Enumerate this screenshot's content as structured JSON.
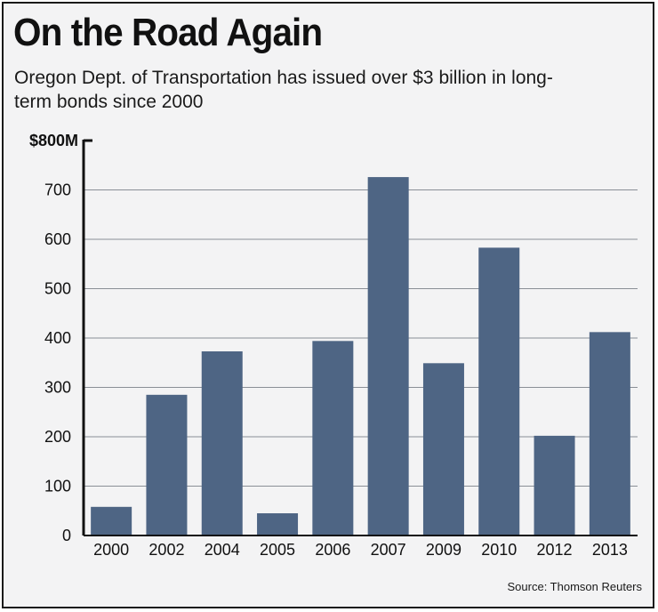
{
  "chart_data": {
    "type": "bar",
    "title": "On the Road Again",
    "subtitle": "Oregon Dept. of Transportation has issued over $3 billion in long-term bonds since 2000",
    "categories": [
      "2000",
      "2002",
      "2004",
      "2005",
      "2006",
      "2007",
      "2009",
      "2010",
      "2012",
      "2013"
    ],
    "values": [
      58,
      285,
      373,
      45,
      394,
      726,
      349,
      583,
      202,
      412
    ],
    "ylim": [
      0,
      800
    ],
    "yticks": [
      0,
      100,
      200,
      300,
      400,
      500,
      600,
      700,
      800
    ],
    "ytick_labels": [
      "0",
      "100",
      "200",
      "300",
      "400",
      "500",
      "600",
      "700",
      "$800M"
    ],
    "xlabel": "",
    "ylabel": "",
    "grid": true,
    "source": "Source: Thomson Reuters",
    "bar_color": "#4e6584"
  }
}
